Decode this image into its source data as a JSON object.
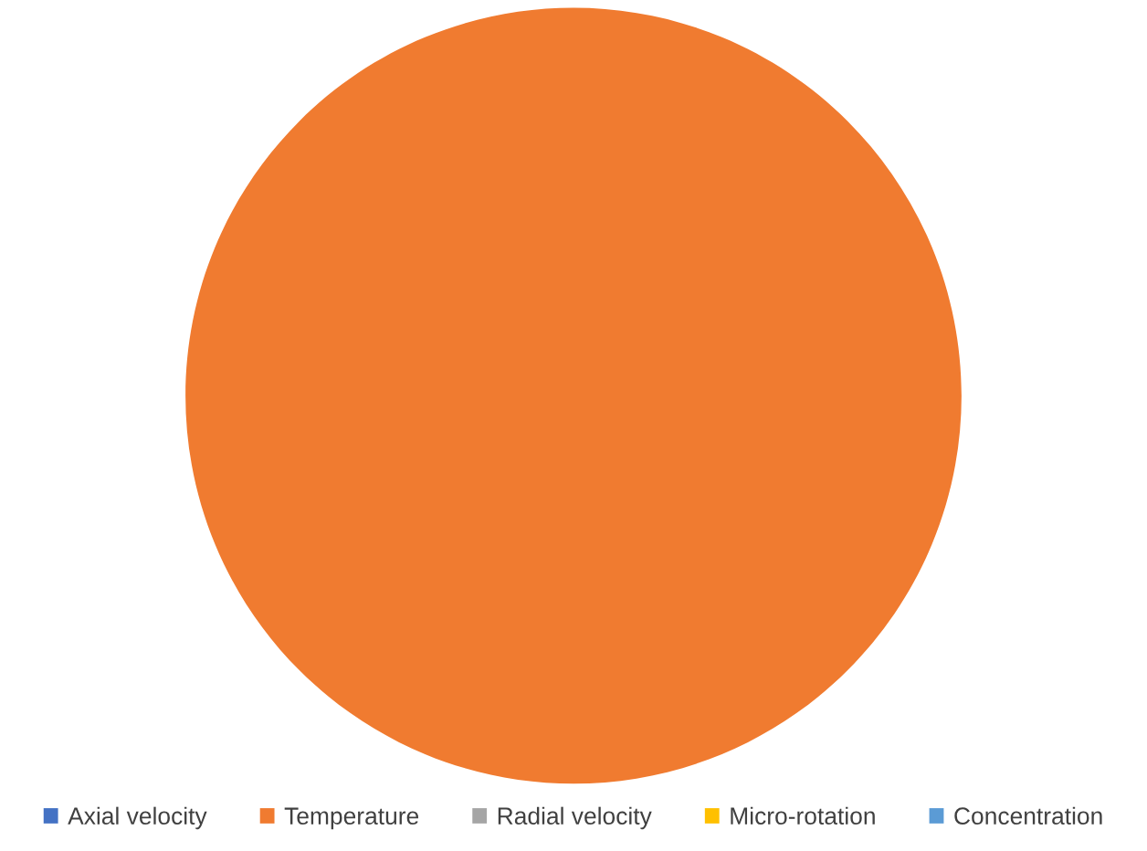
{
  "chart_data": {
    "type": "pie",
    "categories": [
      "Axial velocity",
      "Temperature",
      "Radial velocity",
      "Micro-rotation",
      "Concentration"
    ],
    "values": [
      0,
      100,
      0,
      0,
      0
    ],
    "colors": [
      "#4472c4",
      "#f07b30",
      "#a5a5a5",
      "#ffc000",
      "#5b9bd5"
    ],
    "legend": "bottom"
  }
}
